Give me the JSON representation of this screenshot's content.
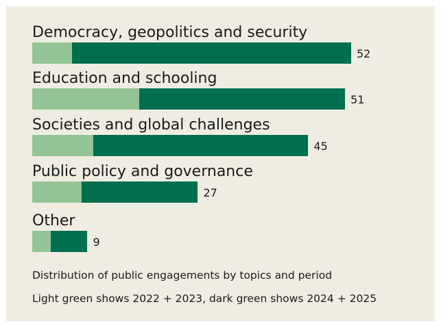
{
  "colors": {
    "background": "#efece2",
    "light_green": "#93c496",
    "dark_green": "#006e4f"
  },
  "captions": {
    "line1": "Distribution of public engagements by topics and period",
    "line2": "Light green shows 2022 + 2023,  dark green shows 2024 + 2025"
  },
  "chart_data": {
    "type": "bar",
    "orientation": "horizontal",
    "stacked": true,
    "categories": [
      "Democracy, geopolitics and security",
      "Education and schooling",
      "Societies and global challenges",
      "Public policy and governance",
      "Other"
    ],
    "totals": [
      52,
      51,
      45,
      27,
      9
    ],
    "series": [
      {
        "color": "#93c496",
        "values": [
          6.5,
          17.5,
          10,
          8,
          3
        ]
      },
      {
        "color": "#006e4f",
        "values": [
          45.5,
          33.5,
          35,
          19,
          6
        ]
      }
    ],
    "xlim": [
      0,
      52
    ],
    "grid": false,
    "legend": "none"
  }
}
